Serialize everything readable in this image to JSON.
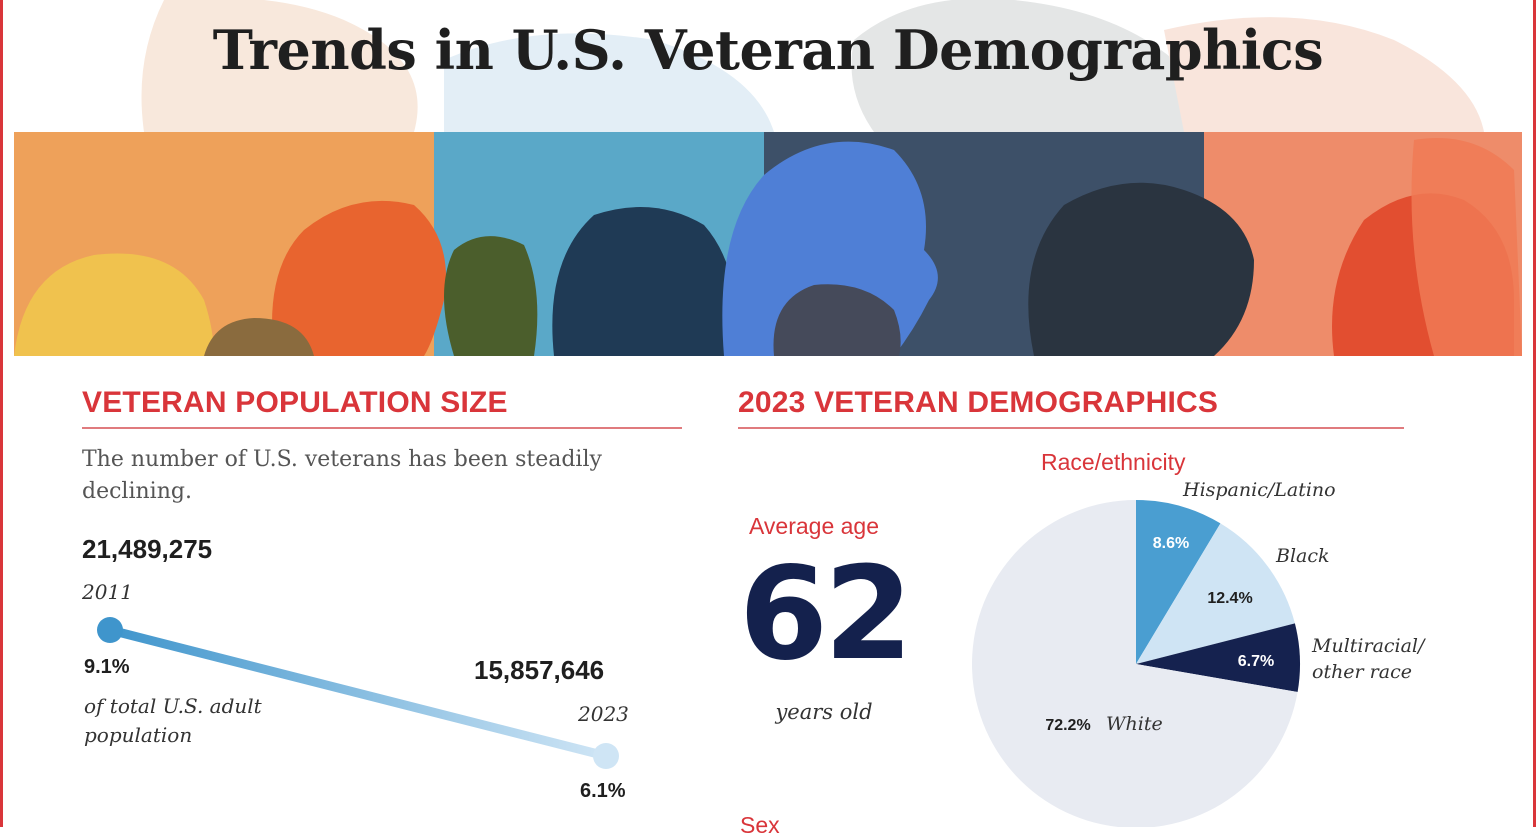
{
  "page": {
    "title": "Trends in U.S. Veteran Demographics"
  },
  "population": {
    "heading": "VETERAN POPULATION SIZE",
    "intro": "The number of U.S. veterans has been steadily declining.",
    "start": {
      "value_label": "21,489,275",
      "year": "2011",
      "share_label": "9.1%"
    },
    "end": {
      "value_label": "15,857,646",
      "year": "2023",
      "share_label": "6.1%"
    },
    "share_caption_line1": "of total U.S. adult",
    "share_caption_line2": "population"
  },
  "demographics": {
    "heading": "2023 VETERAN DEMOGRAPHICS",
    "age_heading": "Average age",
    "age_value": "62",
    "age_unit": "years old",
    "race_heading": "Race/ethnicity",
    "next_heading": "Sex"
  },
  "colors": {
    "accent_red": "#d9353a",
    "navy": "#14214d",
    "line_start": "#3f95cc",
    "line_end": "#cfe5f5",
    "pie_hispanic": "#4a9ed1",
    "pie_black": "#cfe4f4",
    "pie_multiracial": "#15224f",
    "pie_white": "#e8ebf2"
  },
  "chart_data": [
    {
      "type": "line",
      "x": [
        "2011",
        "2023"
      ],
      "series": [
        {
          "values": [
            21489275,
            15857646
          ]
        }
      ],
      "annotations": [
        {
          "x": "2011",
          "share_percent": 9.1
        },
        {
          "x": "2023",
          "share_percent": 6.1
        }
      ]
    },
    {
      "type": "pie",
      "title": "Race/ethnicity",
      "slices": [
        {
          "label": "Hispanic/Latino",
          "value": 8.6,
          "value_label": "8.6%",
          "color": "#4a9ed1",
          "label_color": "#ffffff"
        },
        {
          "label": "Black",
          "value": 12.4,
          "value_label": "12.4%",
          "color": "#cfe4f4",
          "label_color": "#1f1f1f"
        },
        {
          "label": "Multiracial/ other race",
          "label_lines": [
            "Multiracial/",
            "other race"
          ],
          "value": 6.7,
          "value_label": "6.7%",
          "color": "#15224f",
          "label_color": "#ffffff"
        },
        {
          "label": "White",
          "value": 72.2,
          "value_label": "72.2%",
          "color": "#e8ebf2",
          "label_color": "#1f1f1f"
        }
      ]
    }
  ]
}
